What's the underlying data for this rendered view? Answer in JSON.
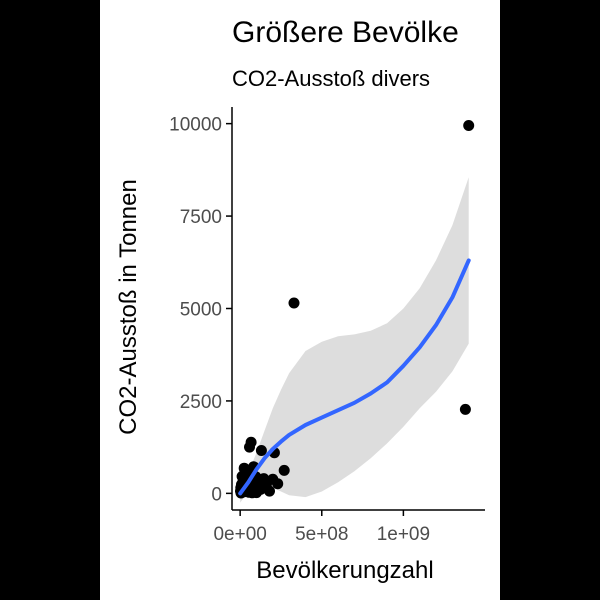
{
  "chart_data": {
    "type": "scatter",
    "title": "Größere Bevölke",
    "subtitle": "CO2-Ausstoß divers",
    "xlabel": "Bevölkerungzahl",
    "ylabel": "CO2-Ausstoß in Tonnen",
    "xlim": [
      -50000000,
      1500000000
    ],
    "ylim": [
      -450,
      10450
    ],
    "x_ticks": [
      0,
      500000000,
      1000000000
    ],
    "x_tick_labels": [
      "0e+00",
      "5e+08",
      "1e+09"
    ],
    "y_ticks": [
      0,
      2500,
      5000,
      7500,
      10000
    ],
    "y_tick_labels": [
      "0",
      "2500",
      "5000",
      "7500",
      "10000"
    ],
    "grid": false,
    "legend": "none",
    "points": [
      {
        "x": 1400000000,
        "y": 9950
      },
      {
        "x": 330000000,
        "y": 5150
      },
      {
        "x": 1380000000,
        "y": 2270
      },
      {
        "x": 67000000,
        "y": 1380
      },
      {
        "x": 57000000,
        "y": 1250
      },
      {
        "x": 130000000,
        "y": 1160
      },
      {
        "x": 210000000,
        "y": 1100
      },
      {
        "x": 25000000,
        "y": 680
      },
      {
        "x": 45000000,
        "y": 620
      },
      {
        "x": 83000000,
        "y": 720
      },
      {
        "x": 270000000,
        "y": 620
      },
      {
        "x": 60000000,
        "y": 540
      },
      {
        "x": 12000000,
        "y": 460
      },
      {
        "x": 35000000,
        "y": 420
      },
      {
        "x": 95000000,
        "y": 450
      },
      {
        "x": 145000000,
        "y": 400
      },
      {
        "x": 200000000,
        "y": 380
      },
      {
        "x": 18000000,
        "y": 330
      },
      {
        "x": 50000000,
        "y": 300
      },
      {
        "x": 110000000,
        "y": 310
      },
      {
        "x": 8000000,
        "y": 240
      },
      {
        "x": 28000000,
        "y": 220
      },
      {
        "x": 70000000,
        "y": 200
      },
      {
        "x": 160000000,
        "y": 230
      },
      {
        "x": 230000000,
        "y": 260
      },
      {
        "x": 4000000,
        "y": 150
      },
      {
        "x": 15000000,
        "y": 120
      },
      {
        "x": 40000000,
        "y": 130
      },
      {
        "x": 90000000,
        "y": 100
      },
      {
        "x": 125000000,
        "y": 110
      },
      {
        "x": 2000000,
        "y": 60
      },
      {
        "x": 10000000,
        "y": 50
      },
      {
        "x": 22000000,
        "y": 40
      },
      {
        "x": 55000000,
        "y": 30
      },
      {
        "x": 100000000,
        "y": 20
      },
      {
        "x": 180000000,
        "y": 60
      },
      {
        "x": 5000000,
        "y": 10
      },
      {
        "x": 75000000,
        "y": 15
      }
    ],
    "smooth_color": "#3366ff",
    "band_color": "#d9d9d9",
    "point_color": "#000000",
    "smooth": [
      {
        "x": 0,
        "y": 0,
        "lo": -250,
        "hi": 250
      },
      {
        "x": 50000000,
        "y": 300,
        "lo": 50,
        "hi": 550
      },
      {
        "x": 100000000,
        "y": 650,
        "lo": 200,
        "hi": 1100
      },
      {
        "x": 150000000,
        "y": 950,
        "lo": 250,
        "hi": 1700
      },
      {
        "x": 200000000,
        "y": 1200,
        "lo": 150,
        "hi": 2300
      },
      {
        "x": 250000000,
        "y": 1400,
        "lo": 50,
        "hi": 2800
      },
      {
        "x": 300000000,
        "y": 1580,
        "lo": -50,
        "hi": 3250
      },
      {
        "x": 400000000,
        "y": 1850,
        "lo": -100,
        "hi": 3850
      },
      {
        "x": 500000000,
        "y": 2050,
        "lo": 50,
        "hi": 4100
      },
      {
        "x": 600000000,
        "y": 2250,
        "lo": 300,
        "hi": 4250
      },
      {
        "x": 700000000,
        "y": 2450,
        "lo": 600,
        "hi": 4300
      },
      {
        "x": 800000000,
        "y": 2700,
        "lo": 950,
        "hi": 4400
      },
      {
        "x": 900000000,
        "y": 3000,
        "lo": 1350,
        "hi": 4600
      },
      {
        "x": 1000000000,
        "y": 3450,
        "lo": 1800,
        "hi": 5000
      },
      {
        "x": 1100000000,
        "y": 3950,
        "lo": 2300,
        "hi": 5550
      },
      {
        "x": 1200000000,
        "y": 4550,
        "lo": 2750,
        "hi": 6300
      },
      {
        "x": 1300000000,
        "y": 5300,
        "lo": 3300,
        "hi": 7250
      },
      {
        "x": 1400000000,
        "y": 6300,
        "lo": 4050,
        "hi": 8550
      }
    ]
  }
}
